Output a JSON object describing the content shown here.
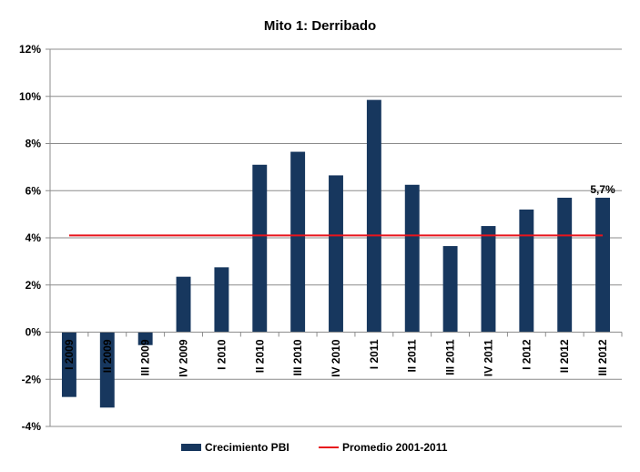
{
  "colors": {
    "bar": "#17375e",
    "line": "#e8141c",
    "grid": "#8c8c8c",
    "axis": "#8c8c8c"
  },
  "chart_data": {
    "type": "bar",
    "title": "Mito 1: Derribado",
    "categories": [
      "I 2009",
      "II 2009",
      "III 2009",
      "IV 2009",
      "I 2010",
      "II 2010",
      "III 2010",
      "IV 2010",
      "I 2011",
      "II 2011",
      "III 2011",
      "IV 2011",
      "I 2012",
      "II 2012",
      "III 2012"
    ],
    "series": [
      {
        "name": "Crecimiento PBI",
        "type": "bar",
        "values": [
          -2.75,
          -3.2,
          -0.55,
          2.35,
          2.75,
          7.1,
          7.65,
          6.65,
          9.85,
          6.25,
          3.65,
          4.5,
          5.2,
          5.7,
          5.7
        ]
      },
      {
        "name": "Promedio 2001-2011",
        "type": "line",
        "values": [
          4.1,
          4.1,
          4.1,
          4.1,
          4.1,
          4.1,
          4.1,
          4.1,
          4.1,
          4.1,
          4.1,
          4.1,
          4.1,
          4.1,
          4.1
        ]
      }
    ],
    "ylim": [
      -4,
      12
    ],
    "yticks": [
      -4,
      -2,
      0,
      2,
      4,
      6,
      8,
      10,
      12
    ],
    "ytick_labels": [
      "-4%",
      "-2%",
      "0%",
      "2%",
      "4%",
      "6%",
      "8%",
      "10%",
      "12%"
    ],
    "annotation": {
      "category": "III 2012",
      "text": "5,7%"
    },
    "grid": true,
    "legend": "bottom"
  }
}
